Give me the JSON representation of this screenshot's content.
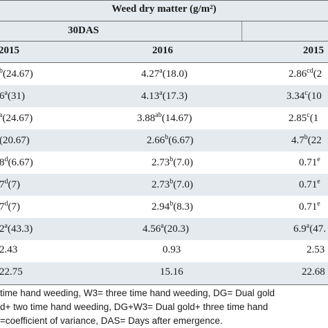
{
  "table": {
    "title": "Weed dry matter (g/m²)",
    "das_label": "30DAS",
    "years": [
      "2015",
      "2016",
      "2015"
    ],
    "rows": [
      {
        "c1": {
          "main": "",
          "sup": "b",
          "after": "(24.67)"
        },
        "c2": {
          "main": "4.27",
          "sup": "a",
          "after": "(18.0)"
        },
        "c3": {
          "main": "2.86",
          "sup": "cd",
          "after": "(2"
        }
      },
      {
        "c1": {
          "main": "6",
          "sup": "a",
          "after": "(31)"
        },
        "c2": {
          "main": "4.13",
          "sup": "a",
          "after": "(17.3)"
        },
        "c3": {
          "main": "3.34",
          "sup": "c",
          "after": "(10"
        }
      },
      {
        "c1": {
          "main": "",
          "sup": "a",
          "after": "(24.67)"
        },
        "c2": {
          "main": "3.88",
          "sup": "ab",
          "after": "(14.67)"
        },
        "c3": {
          "main": "2.85",
          "sup": "c",
          "after": "(1"
        }
      },
      {
        "c1": {
          "main": "",
          "sup": "",
          "after": "(20.67)"
        },
        "c2": {
          "main": "2.66",
          "sup": "b",
          "after": "(6.67)"
        },
        "c3": {
          "main": "4.7",
          "sup": "b",
          "after": "(22"
        }
      },
      {
        "c1": {
          "main": "8",
          "sup": "d",
          "after": "(6.67)"
        },
        "c2": {
          "main": "2.73",
          "sup": "b",
          "after": "(7.0)"
        },
        "c3": {
          "main": "0.71",
          "sup": "e",
          "after": ""
        }
      },
      {
        "c1": {
          "main": "7",
          "sup": "d",
          "after": "(7)"
        },
        "c2": {
          "main": "2.73",
          "sup": "b",
          "after": "(7.0)"
        },
        "c3": {
          "main": "0.71",
          "sup": "e",
          "after": ""
        }
      },
      {
        "c1": {
          "main": "7",
          "sup": "d",
          "after": "(7)"
        },
        "c2": {
          "main": "2.94",
          "sup": "b",
          "after": "(8.3)"
        },
        "c3": {
          "main": "0.71",
          "sup": "e",
          "after": ""
        }
      },
      {
        "c1": {
          "main": "2",
          "sup": "a",
          "after": "(43.3)"
        },
        "c2": {
          "main": "4.56",
          "sup": "a",
          "after": "(20.3)"
        },
        "c3": {
          "main": "6.9",
          "sup": "a",
          "after": "(47."
        }
      },
      {
        "c1": {
          "main": "2.43",
          "sup": "",
          "after": ""
        },
        "c2": {
          "main": "0.93",
          "sup": "",
          "after": ""
        },
        "c3": {
          "main": "2.53",
          "sup": "",
          "after": ""
        }
      },
      {
        "c1": {
          "main": "22.75",
          "sup": "",
          "after": ""
        },
        "c2": {
          "main": "15.16",
          "sup": "",
          "after": ""
        },
        "c3": {
          "main": "22.68",
          "sup": "",
          "after": ""
        }
      }
    ]
  },
  "footnotes": [
    "time hand weeding, W3= three time hand weeding, DG= Dual gold",
    "d+ two time hand weeding, DG+W3= Dual gold+ three time hand",
    "=coefficient of variance, DAS= Days after emergence."
  ]
}
